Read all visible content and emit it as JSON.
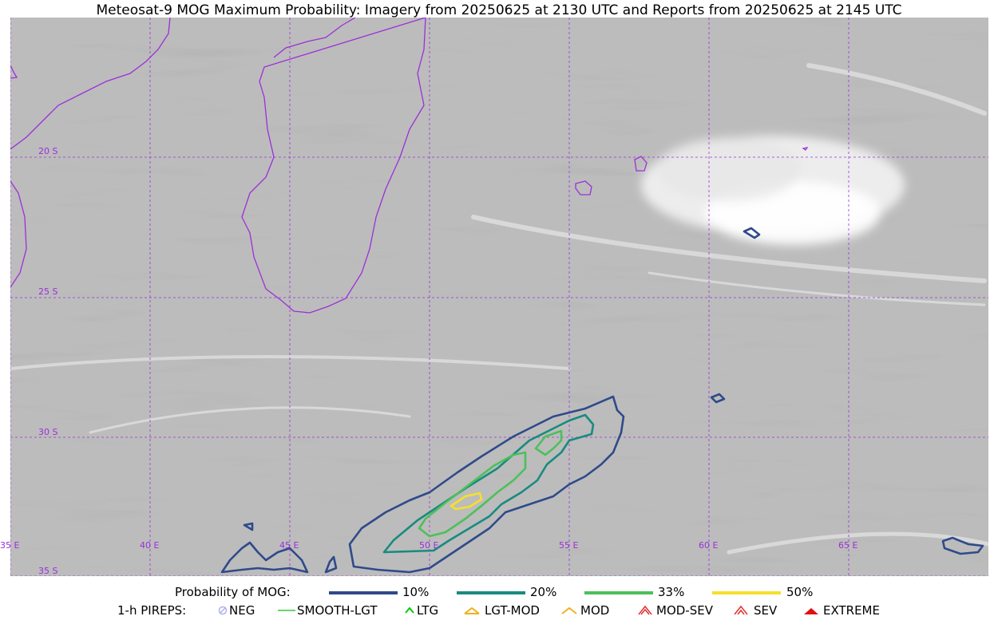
{
  "title": "Meteosat-9 MOG Maximum Probability: Imagery from 20250625 at 2130 UTC and Reports from 20250625 at 2145 UTC",
  "map": {
    "lat_labels": [
      "20 S",
      "25 S",
      "30 S",
      "35 S"
    ],
    "lon_labels": [
      "35 E",
      "40 E",
      "45 E",
      "50 E",
      "55 E",
      "60 E",
      "65 E"
    ],
    "grid_color": "#9b30d9",
    "coast_color": "#9b30d9",
    "imagery": "grayscale satellite cloud imagery"
  },
  "legend": {
    "prob_title": "Probability of MOG:",
    "prob_items": [
      {
        "label": "10%",
        "color": "#2f4a8a"
      },
      {
        "label": "20%",
        "color": "#1a8a80"
      },
      {
        "label": "33%",
        "color": "#4cc05a"
      },
      {
        "label": "50%",
        "color": "#f5e02a"
      }
    ],
    "pirep_title": "1-h PIREPS:",
    "pirep_items": [
      {
        "label": "NEG",
        "icon": "neg-icon",
        "color": "#b0b0f0"
      },
      {
        "label": "SMOOTH-LGT",
        "icon": "smooth-lgt-icon",
        "color": "#33cc33"
      },
      {
        "label": "LTG",
        "icon": "ltg-icon",
        "color": "#00cc00"
      },
      {
        "label": "LGT-MOD",
        "icon": "lgt-mod-icon",
        "color": "#f0b020"
      },
      {
        "label": "MOD",
        "icon": "mod-icon",
        "color": "#f0b020"
      },
      {
        "label": "MOD-SEV",
        "icon": "mod-sev-icon",
        "color": "#e03030"
      },
      {
        "label": "SEV",
        "icon": "sev-icon",
        "color": "#e03030"
      },
      {
        "label": "EXTREME",
        "icon": "extreme-icon",
        "color": "#e01010"
      }
    ]
  }
}
